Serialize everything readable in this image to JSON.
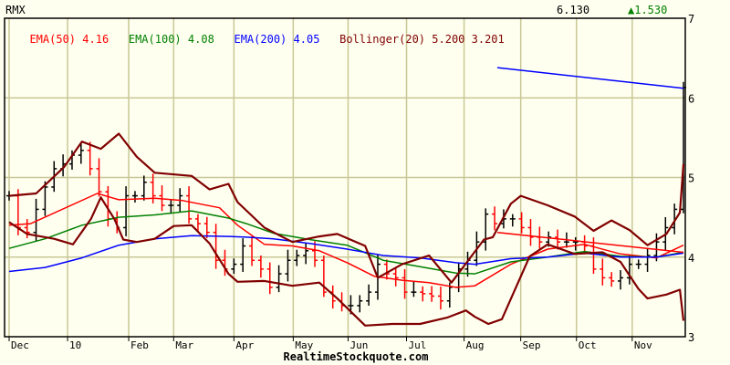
{
  "header": {
    "symbol": "RMX",
    "last_price": "6.130",
    "change_arrow": "▲",
    "change": "1.530"
  },
  "legend": [
    {
      "label": "EMA(50)",
      "value": "4.16",
      "color": "#ff0000"
    },
    {
      "label": "EMA(100)",
      "value": "4.08",
      "color": "#008000"
    },
    {
      "label": "EMA(200)",
      "value": "4.05",
      "color": "#0000ff"
    },
    {
      "label": "Bollinger(20)",
      "value": "5.200 3.201",
      "color": "#800000"
    }
  ],
  "footer": "RealtimeStockquote.com",
  "colors": {
    "background": "#fffff0",
    "grid": "#c8c896",
    "up": "#000000",
    "down": "#ff0000"
  },
  "chart_data": {
    "type": "bar",
    "title": "",
    "ylim": [
      3,
      7
    ],
    "yticks": [
      3,
      4,
      5,
      6,
      7
    ],
    "grid": true,
    "xticks": [
      {
        "label": "Dec",
        "at": 0
      },
      {
        "label": "10",
        "at": 6.5
      },
      {
        "label": "Feb",
        "at": 13.3
      },
      {
        "label": "Mar",
        "at": 18.3
      },
      {
        "label": "Apr",
        "at": 25
      },
      {
        "label": "May",
        "at": 31.6
      },
      {
        "label": "Jun",
        "at": 37.7
      },
      {
        "label": "Jul",
        "at": 44.2
      },
      {
        "label": "Aug",
        "at": 50.6
      },
      {
        "label": "Sep",
        "at": 56.9
      },
      {
        "label": "Oct",
        "at": 63.1
      },
      {
        "label": "Nov",
        "at": 69.3
      }
    ],
    "closes": [
      4.77,
      4.37,
      4.31,
      4.6,
      4.88,
      5.11,
      5.17,
      5.28,
      5.34,
      5.11,
      4.82,
      4.48,
      4.37,
      4.77,
      4.77,
      4.94,
      4.77,
      4.65,
      4.65,
      4.77,
      4.48,
      4.42,
      4.31,
      3.96,
      3.85,
      3.91,
      4.14,
      3.96,
      3.85,
      3.62,
      3.79,
      3.96,
      4.02,
      4.08,
      3.96,
      3.56,
      3.45,
      3.39,
      3.39,
      3.45,
      3.56,
      3.91,
      3.79,
      3.74,
      3.56,
      3.56,
      3.54,
      3.51,
      3.45,
      3.62,
      3.85,
      3.96,
      4.19,
      4.54,
      4.42,
      4.48,
      4.48,
      4.37,
      4.25,
      4.19,
      4.25,
      4.19,
      4.19,
      4.19,
      4.14,
      3.85,
      3.74,
      3.7,
      3.74,
      3.91,
      3.91,
      4.02,
      4.19,
      4.37,
      4.6,
      6.13
    ],
    "last_bar": {
      "high": 6.2,
      "low": 4.55,
      "close": 6.13
    },
    "series": [
      {
        "name": "EMA(50)",
        "color": "#ff0000",
        "points": [
          [
            0,
            4.4
          ],
          [
            2.4,
            4.42
          ],
          [
            9.8,
            4.8
          ],
          [
            12.2,
            4.72
          ],
          [
            16.2,
            4.74
          ],
          [
            19.3,
            4.71
          ],
          [
            23.4,
            4.62
          ],
          [
            25.4,
            4.4
          ],
          [
            28.4,
            4.16
          ],
          [
            31.5,
            4.14
          ],
          [
            34.5,
            4.08
          ],
          [
            37.6,
            3.93
          ],
          [
            40.6,
            3.76
          ],
          [
            43.7,
            3.71
          ],
          [
            46.7,
            3.68
          ],
          [
            49.7,
            3.62
          ],
          [
            51.8,
            3.64
          ],
          [
            55.8,
            3.91
          ],
          [
            59.9,
            4.1
          ],
          [
            64,
            4.16
          ],
          [
            68,
            4.04
          ],
          [
            72,
            3.99
          ],
          [
            75,
            4.15
          ]
        ]
      },
      {
        "name": "EMA(100)",
        "color": "#008000",
        "points": [
          [
            0,
            4.11
          ],
          [
            4,
            4.23
          ],
          [
            8.1,
            4.4
          ],
          [
            12.2,
            4.5
          ],
          [
            16.2,
            4.53
          ],
          [
            20.3,
            4.58
          ],
          [
            24.4,
            4.49
          ],
          [
            26.4,
            4.42
          ],
          [
            29.4,
            4.3
          ],
          [
            33.5,
            4.22
          ],
          [
            37.6,
            4.15
          ],
          [
            41.6,
            3.96
          ],
          [
            45.7,
            3.88
          ],
          [
            49.7,
            3.8
          ],
          [
            51.8,
            3.79
          ],
          [
            55.8,
            3.94
          ],
          [
            59.9,
            4.0
          ],
          [
            64,
            4.07
          ],
          [
            68,
            4.01
          ],
          [
            72,
            4.0
          ],
          [
            75,
            4.06
          ]
        ]
      },
      {
        "name": "EMA(200)",
        "color": "#0000ff",
        "points": [
          [
            0,
            3.82
          ],
          [
            4,
            3.87
          ],
          [
            8.1,
            3.99
          ],
          [
            12.2,
            4.15
          ],
          [
            16.2,
            4.23
          ],
          [
            20.3,
            4.27
          ],
          [
            24.4,
            4.26
          ],
          [
            26.4,
            4.25
          ],
          [
            29.4,
            4.23
          ],
          [
            33.5,
            4.17
          ],
          [
            37.6,
            4.1
          ],
          [
            41.6,
            4.02
          ],
          [
            45.7,
            3.99
          ],
          [
            49.7,
            3.93
          ],
          [
            51.8,
            3.91
          ],
          [
            55.8,
            3.98
          ],
          [
            59.9,
            4.0
          ],
          [
            64,
            4.05
          ],
          [
            68,
            4.0
          ],
          [
            72,
            4.0
          ],
          [
            75,
            4.05
          ]
        ]
      },
      {
        "name": "Bollinger upper",
        "color": "#800000",
        "points": [
          [
            0,
            4.77
          ],
          [
            3,
            4.8
          ],
          [
            6.1,
            5.13
          ],
          [
            8.1,
            5.45
          ],
          [
            10.2,
            5.36
          ],
          [
            12.2,
            5.55
          ],
          [
            14.2,
            5.26
          ],
          [
            16.2,
            5.06
          ],
          [
            20.3,
            5.02
          ],
          [
            22.3,
            4.85
          ],
          [
            24.4,
            4.92
          ],
          [
            25.4,
            4.69
          ],
          [
            28.4,
            4.37
          ],
          [
            31.5,
            4.19
          ],
          [
            34.5,
            4.26
          ],
          [
            36.5,
            4.29
          ],
          [
            39.6,
            4.14
          ],
          [
            41,
            3.74
          ],
          [
            43.7,
            3.91
          ],
          [
            46.7,
            4.02
          ],
          [
            49.2,
            3.68
          ],
          [
            52.8,
            4.22
          ],
          [
            53.8,
            4.25
          ],
          [
            55.8,
            4.67
          ],
          [
            56.9,
            4.77
          ],
          [
            59.9,
            4.65
          ],
          [
            62.9,
            4.51
          ],
          [
            65,
            4.33
          ],
          [
            67,
            4.46
          ],
          [
            69,
            4.34
          ],
          [
            71,
            4.15
          ],
          [
            73.1,
            4.29
          ],
          [
            74.6,
            4.56
          ],
          [
            75,
            5.17
          ]
        ]
      },
      {
        "name": "Bollinger lower",
        "color": "#800000",
        "points": [
          [
            0,
            4.44
          ],
          [
            2,
            4.29
          ],
          [
            5,
            4.23
          ],
          [
            7.1,
            4.16
          ],
          [
            9.1,
            4.48
          ],
          [
            10.2,
            4.75
          ],
          [
            11.7,
            4.48
          ],
          [
            12.7,
            4.22
          ],
          [
            14.2,
            4.19
          ],
          [
            16.2,
            4.23
          ],
          [
            18.3,
            4.39
          ],
          [
            20.3,
            4.4
          ],
          [
            22.3,
            4.17
          ],
          [
            24.4,
            3.79
          ],
          [
            25.4,
            3.69
          ],
          [
            28.4,
            3.7
          ],
          [
            31.5,
            3.64
          ],
          [
            34.5,
            3.68
          ],
          [
            36.5,
            3.48
          ],
          [
            39.6,
            3.14
          ],
          [
            42.6,
            3.16
          ],
          [
            45.7,
            3.16
          ],
          [
            48.7,
            3.24
          ],
          [
            50.8,
            3.33
          ],
          [
            51.8,
            3.25
          ],
          [
            53.3,
            3.16
          ],
          [
            54.8,
            3.22
          ],
          [
            56.3,
            3.6
          ],
          [
            57.9,
            4.01
          ],
          [
            59.9,
            4.16
          ],
          [
            62.9,
            4.04
          ],
          [
            66,
            4.06
          ],
          [
            68,
            3.94
          ],
          [
            70,
            3.6
          ],
          [
            71,
            3.48
          ],
          [
            73.1,
            3.53
          ],
          [
            74.6,
            3.59
          ],
          [
            75,
            3.2
          ]
        ]
      },
      {
        "name": "EMA(50) level",
        "color": "#ff0000",
        "points": [
          [
            54.3,
            4.31
          ],
          [
            75,
            4.06
          ]
        ]
      },
      {
        "name": "EMA(200) level",
        "color": "#0000ff",
        "points": [
          [
            54.3,
            6.38
          ],
          [
            75,
            6.12
          ]
        ]
      }
    ]
  }
}
